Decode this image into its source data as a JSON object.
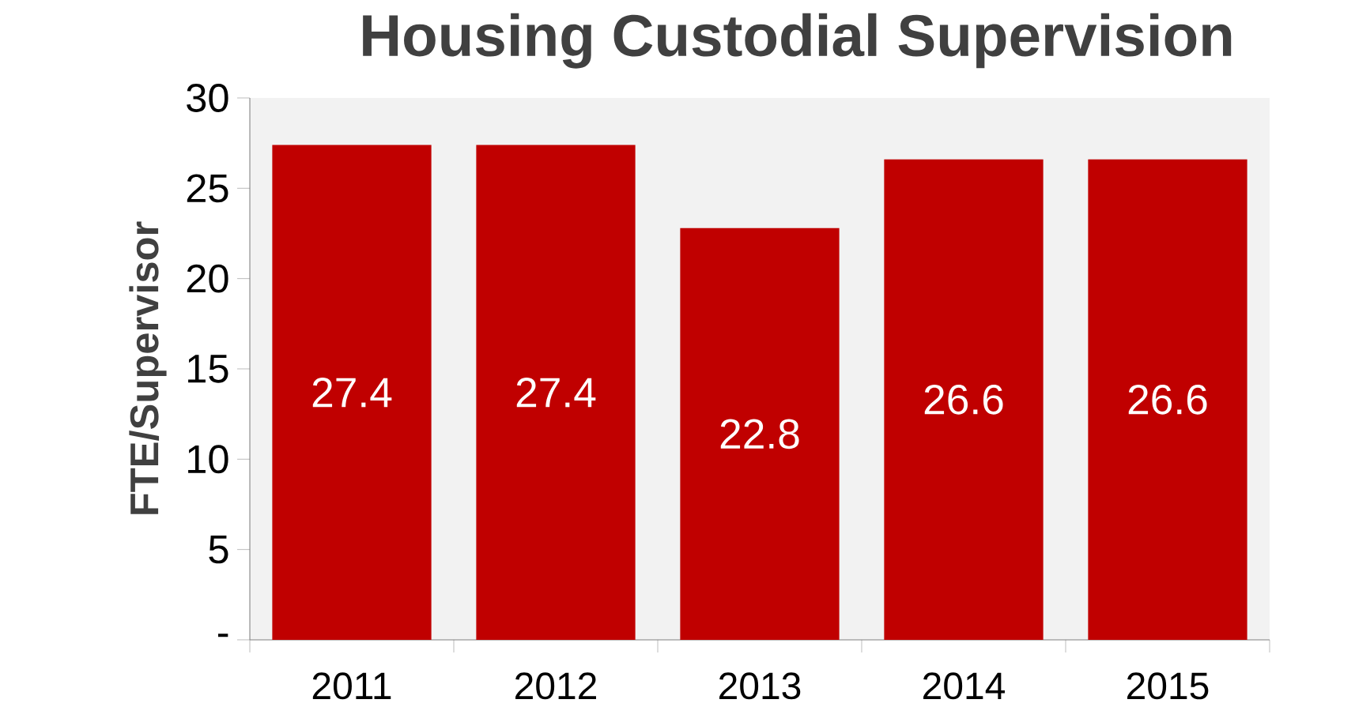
{
  "chart_data": {
    "type": "bar",
    "title": "Housing Custodial Supervision",
    "ylabel": "FTE/Supervisor",
    "categories": [
      "2011",
      "2012",
      "2013",
      "2014",
      "2015"
    ],
    "values": [
      27.4,
      27.4,
      22.8,
      26.6,
      26.6
    ],
    "color": "#c00000",
    "ylim": [
      0,
      30
    ],
    "yticks": [
      {
        "value": 0,
        "label": "-"
      },
      5,
      10,
      15,
      20,
      25,
      30
    ],
    "data_labels": true,
    "grid": false
  }
}
